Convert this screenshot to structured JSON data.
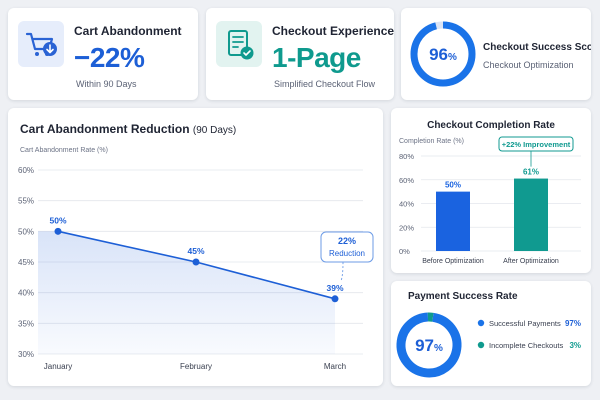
{
  "kpis": {
    "cart": {
      "icon": "cart-download-icon",
      "title": "Cart Abandonment",
      "value": "−22%",
      "subtitle": "Within 90 Days"
    },
    "checkout": {
      "icon": "checklist-icon",
      "title": "Checkout Experience",
      "value": "1-Page",
      "subtitle": "Simplified Checkout Flow"
    },
    "success": {
      "value_num": "96",
      "value_unit": "%",
      "percent": 96,
      "title": "Checkout Success Score",
      "subtitle": "Checkout Optimization"
    }
  },
  "colors": {
    "blue": "#1d5fd6",
    "bright_blue": "#1a73e8",
    "teal": "#0f9a8e",
    "bg": "#eef0f4"
  },
  "chart_data": [
    {
      "type": "line",
      "title": "Cart Abandonment Reduction",
      "title_suffix": "(90 Days)",
      "ylabel": "Cart Abandonment Rate (%)",
      "xlabel": "",
      "categories": [
        "January",
        "February",
        "March"
      ],
      "series": [
        {
          "values": [
            50,
            45,
            39
          ]
        }
      ],
      "data_labels": [
        "50%",
        "45%",
        "39%"
      ],
      "ylim": [
        30,
        60
      ],
      "yticks": [
        30,
        35,
        40,
        45,
        50,
        55,
        60
      ],
      "ytick_labels": [
        "30%",
        "35%",
        "40%",
        "45%",
        "50%",
        "55%",
        "60%"
      ],
      "grid": true,
      "annotation": {
        "line1": "22%",
        "line2": "Reduction"
      }
    },
    {
      "type": "bar",
      "title": "Checkout Completion Rate",
      "ylabel": "Completion Rate (%)",
      "xlabel": "",
      "categories": [
        "Before Optimization",
        "After Optimization"
      ],
      "values": [
        50,
        61
      ],
      "data_labels": [
        "50%",
        "61%"
      ],
      "bar_colors": [
        "#1a63e0",
        "#109a90"
      ],
      "ylim": [
        0,
        80
      ],
      "yticks": [
        0,
        20,
        40,
        60,
        80
      ],
      "ytick_labels": [
        "0%",
        "20%",
        "40%",
        "60%",
        "80%"
      ],
      "grid": true,
      "annotation": {
        "text": "+22% Improvement"
      }
    },
    {
      "type": "pie",
      "title": "Payment Success Rate",
      "center_num": "97",
      "center_unit": "%",
      "slices": [
        {
          "name": "Successful Payments",
          "value": 97,
          "label": "97%",
          "color": "#1a73e8"
        },
        {
          "name": "Incomplete Checkouts",
          "value": 3,
          "label": "3%",
          "color": "#0f9a8e"
        }
      ]
    }
  ]
}
